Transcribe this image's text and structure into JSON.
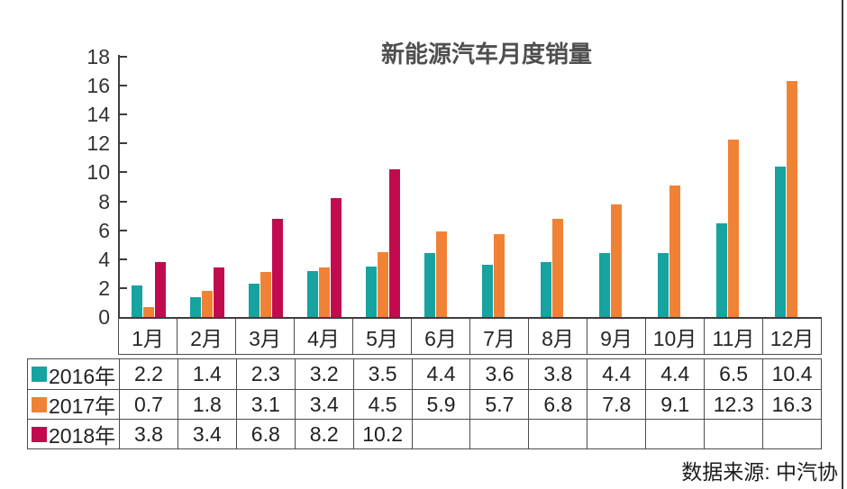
{
  "title": "新能源汽车月度销量",
  "source_note": "数据来源: 中汽协",
  "chart_data": {
    "type": "bar",
    "title": "新能源汽车月度销量",
    "categories": [
      "1月",
      "2月",
      "3月",
      "4月",
      "5月",
      "6月",
      "7月",
      "8月",
      "9月",
      "10月",
      "11月",
      "12月"
    ],
    "series": [
      {
        "name": "2016年",
        "color": "#17A3A0",
        "values": [
          2.2,
          1.4,
          2.3,
          3.2,
          3.5,
          4.4,
          3.6,
          3.8,
          4.4,
          4.4,
          6.5,
          10.4
        ]
      },
      {
        "name": "2017年",
        "color": "#F08236",
        "values": [
          0.7,
          1.8,
          3.1,
          3.4,
          4.5,
          5.9,
          5.7,
          6.8,
          7.8,
          9.1,
          12.3,
          16.3
        ]
      },
      {
        "name": "2018年",
        "color": "#C10B4E",
        "values": [
          3.8,
          3.4,
          6.8,
          8.2,
          10.2,
          null,
          null,
          null,
          null,
          null,
          null,
          null
        ]
      }
    ],
    "xlabel": "",
    "ylabel": "",
    "ylim": [
      0,
      18
    ],
    "yticks": [
      0,
      2,
      4,
      6,
      8,
      10,
      12,
      14,
      16,
      18
    ],
    "grid": false,
    "legend_position": "table-left",
    "source": "数据来源: 中汽协",
    "axis_color": "#3d3d3d",
    "border_color": "#4c4c4c"
  }
}
